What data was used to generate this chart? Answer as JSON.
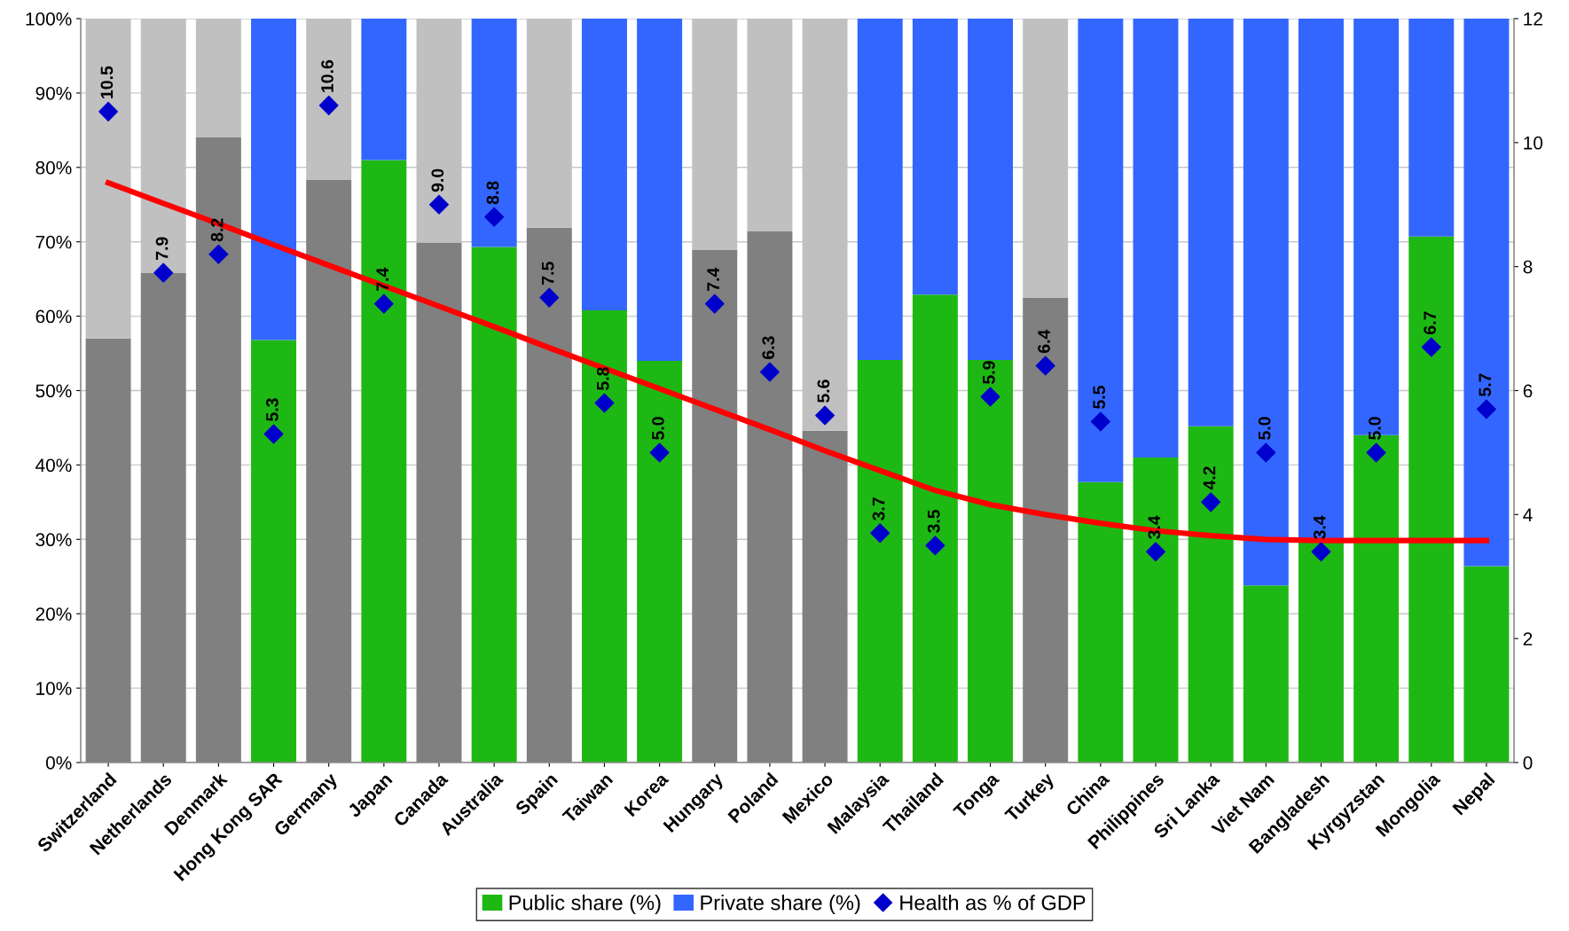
{
  "chart_data": {
    "type": "bar",
    "stacked": true,
    "categories": [
      "Switzerland",
      "Netherlands",
      "Denmark",
      "Hong Kong SAR",
      "Germany",
      "Japan",
      "Canada",
      "Australia",
      "Spain",
      "Taiwan",
      "Korea",
      "Hungary",
      "Poland",
      "Mexico",
      "Malaysia",
      "Thailand",
      "Tonga",
      "Turkey",
      "China",
      "Philippines",
      "Sri Lanka",
      "Viet Nam",
      "Bangladesh",
      "Kyrgyzstan",
      "Mongolia",
      "Nepal"
    ],
    "series": [
      {
        "name": "Public share (%)",
        "color": "#1eb814",
        "values": [
          57.0,
          65.8,
          84.1,
          56.8,
          78.3,
          81.0,
          69.9,
          69.3,
          71.9,
          60.8,
          54.0,
          68.9,
          71.4,
          44.6,
          54.1,
          62.9,
          54.1,
          62.5,
          37.7,
          41.0,
          45.2,
          23.8,
          29.7,
          44.0,
          70.7,
          26.4
        ],
        "colors": [
          "#808080",
          "#808080",
          "#808080",
          "#1eb814",
          "#808080",
          "#1eb814",
          "#808080",
          "#1eb814",
          "#808080",
          "#1eb814",
          "#1eb814",
          "#808080",
          "#808080",
          "#808080",
          "#1eb814",
          "#1eb814",
          "#1eb814",
          "#808080",
          "#1eb814",
          "#1eb814",
          "#1eb814",
          "#1eb814",
          "#1eb814",
          "#1eb814",
          "#1eb814",
          "#1eb814"
        ]
      },
      {
        "name": "Private share (%)",
        "color": "#3366ff",
        "values": [
          43.0,
          34.2,
          15.9,
          43.2,
          21.7,
          19.0,
          30.1,
          30.7,
          28.1,
          39.2,
          46.0,
          31.1,
          28.6,
          55.4,
          45.9,
          37.1,
          45.9,
          37.5,
          62.3,
          59.0,
          54.8,
          76.2,
          70.3,
          56.0,
          29.3,
          73.6
        ],
        "colors": [
          "#c0c0c0",
          "#c0c0c0",
          "#c0c0c0",
          "#3366ff",
          "#c0c0c0",
          "#3366ff",
          "#c0c0c0",
          "#3366ff",
          "#c0c0c0",
          "#3366ff",
          "#3366ff",
          "#c0c0c0",
          "#c0c0c0",
          "#c0c0c0",
          "#3366ff",
          "#3366ff",
          "#3366ff",
          "#c0c0c0",
          "#3366ff",
          "#3366ff",
          "#3366ff",
          "#3366ff",
          "#3366ff",
          "#3366ff",
          "#3366ff",
          "#3366ff"
        ]
      },
      {
        "name": "Health as % of GDP",
        "type": "scatter",
        "axis": "y2",
        "marker": "diamond",
        "color": "#0000cc",
        "value_labels": [
          "10.5",
          "7.9",
          "8.2",
          "5.3",
          "10.6",
          "7.4",
          "9.0",
          "8.8",
          "7.5",
          "5.8",
          "5.0",
          "7.4",
          "6.3",
          "5.6",
          "3.7",
          "3.5",
          "5.9",
          "6.4",
          "5.5",
          "3.4",
          "4.2",
          "5.0",
          "3.4",
          "5.0",
          "6.7",
          "5.7"
        ],
        "values": [
          10.5,
          7.9,
          8.2,
          5.3,
          10.6,
          7.4,
          9.0,
          8.8,
          7.5,
          5.8,
          5.0,
          7.4,
          6.3,
          5.6,
          3.7,
          3.5,
          5.9,
          6.4,
          5.5,
          3.4,
          4.2,
          5.0,
          3.4,
          5.0,
          6.7,
          5.7
        ]
      },
      {
        "type": "line",
        "axis": "y2",
        "color": "#ff0000",
        "line_style": "solid",
        "marker": "none",
        "values": [
          9.35,
          9.02,
          8.69,
          8.35,
          8.02,
          7.69,
          7.36,
          7.03,
          6.69,
          6.36,
          6.03,
          5.7,
          5.37,
          5.03,
          4.71,
          4.39,
          4.16,
          4.0,
          3.86,
          3.74,
          3.66,
          3.6,
          3.58,
          3.58,
          3.58,
          3.58
        ]
      }
    ],
    "ylim": [
      0,
      100
    ],
    "yticks": [
      {
        "value": 0,
        "label": "0%"
      },
      {
        "value": 10,
        "label": "10%"
      },
      {
        "value": 20,
        "label": "20%"
      },
      {
        "value": 30,
        "label": "30%"
      },
      {
        "value": 40,
        "label": "40%"
      },
      {
        "value": 50,
        "label": "50%"
      },
      {
        "value": 60,
        "label": "60%"
      },
      {
        "value": 70,
        "label": "70%"
      },
      {
        "value": 80,
        "label": "80%"
      },
      {
        "value": 90,
        "label": "90%"
      },
      {
        "value": 100,
        "label": "100%"
      }
    ],
    "y2lim": [
      0,
      12
    ],
    "y2ticks": [
      0,
      2,
      4,
      6,
      8,
      10,
      12
    ],
    "grid": "y",
    "legend": "bottom"
  }
}
